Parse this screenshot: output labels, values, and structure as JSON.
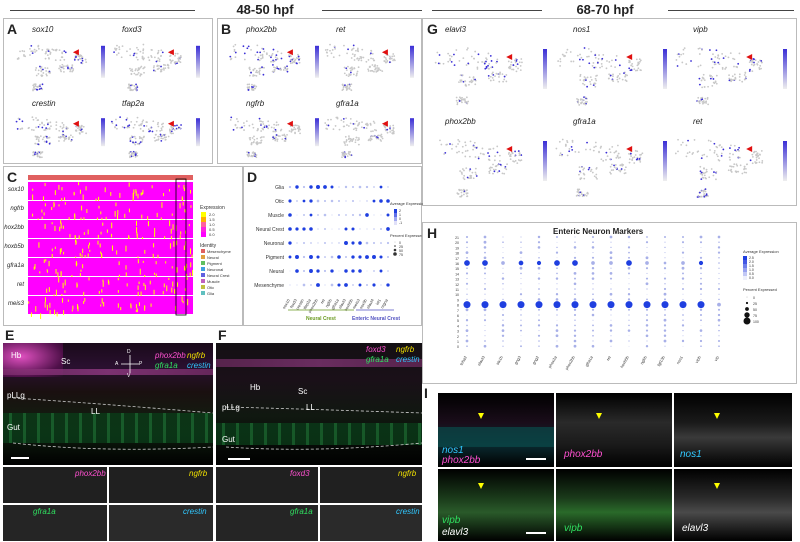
{
  "headers": {
    "left": "48-50 hpf",
    "right": "68-70 hpf"
  },
  "panelA": {
    "label": "A",
    "genes": [
      "sox10",
      "foxd3",
      "crestin",
      "tfap2a"
    ]
  },
  "panelB": {
    "label": "B",
    "genes": [
      "phox2bb",
      "ret",
      "ngfrb",
      "gfra1a"
    ]
  },
  "panelG": {
    "label": "G",
    "genes": [
      "elavl3",
      "nos1",
      "vipb",
      "phox2bb",
      "gfra1a",
      "ret"
    ]
  },
  "panelC": {
    "label": "C",
    "rows": [
      "sox10",
      "ngfrb",
      "phox2bb",
      "hoxb5b",
      "gfra1a",
      "ret",
      "meis3"
    ],
    "legend_title": "Expression",
    "legend_scale": [
      "2.0",
      "1.5",
      "1.0",
      "0.5",
      "0.0"
    ],
    "identity_title": "Identity",
    "identity_items": [
      "Mesenchyme",
      "Neural",
      "Pigment",
      "Neuronal",
      "Neural Crest",
      "Muscle",
      "Otic",
      "Glia"
    ]
  },
  "panelD": {
    "label": "D",
    "rows": [
      "Glia",
      "Otic",
      "Muscle",
      "Neural Crest",
      "Neuronal",
      "Pigment",
      "Neural",
      "Mesenchyme"
    ],
    "cols": [
      "sox10",
      "foxd3",
      "crestin",
      "tfap2a",
      "phox2bb",
      "ret",
      "ngfrb",
      "gfra1a",
      "elavl3",
      "hoxb5b",
      "meis3",
      "sox9b",
      "elavl4",
      "isl1",
      "nrgna"
    ],
    "group1": "Neural Crest",
    "group2": "Enteric Neural Crest",
    "legend_avg": "Average Expression",
    "legend_avg_ticks": [
      "2",
      "1",
      "0",
      "-1"
    ],
    "legend_pct": "Percent Expressed",
    "legend_pct_ticks": [
      "0",
      "25",
      "50",
      "75"
    ]
  },
  "panelH": {
    "label": "H",
    "title": "Enteric Neuron Markers",
    "rows": [
      "21",
      "20",
      "19",
      "18",
      "17",
      "16",
      "15",
      "14",
      "13",
      "12",
      "11",
      "10",
      "9",
      "8",
      "7",
      "6",
      "5",
      "4",
      "3",
      "2",
      "1",
      "0"
    ],
    "cols": [
      "tuba2",
      "elavl3",
      "stx1b",
      "gng3",
      "gng2",
      "phox2a",
      "phox2bb",
      "gfra1a",
      "ret",
      "hoxb5b",
      "ngfrb",
      "fgf13b",
      "nos1",
      "vipb",
      "vip"
    ],
    "legend_avg": "Average Expression",
    "legend_avg_ticks": [
      "2.5",
      "2.0",
      "1.5",
      "1.0",
      "0.5",
      "0.0"
    ],
    "legend_pct": "Percent Expressed",
    "legend_pct_ticks": [
      "0",
      "25",
      "50",
      "75",
      "100"
    ]
  },
  "panelE": {
    "label": "E",
    "labels": [
      "Hb",
      "Sc",
      "pLLg",
      "LL",
      "Gut"
    ],
    "legend": [
      "phox2bb",
      "ngfrb",
      "gfra1a",
      "crestin"
    ],
    "compass": [
      "D",
      "A",
      "P",
      "V"
    ],
    "sub": [
      "phox2bb",
      "ngfrb",
      "gfra1a",
      "crestin"
    ]
  },
  "panelF": {
    "label": "F",
    "labels": [
      "Hb",
      "Sc",
      "pLLg",
      "LL",
      "Gut"
    ],
    "legend": [
      "foxd3",
      "ngfrb",
      "gfra1a",
      "crestin"
    ],
    "sub": [
      "foxd3",
      "ngfrb",
      "gfra1a",
      "crestin"
    ]
  },
  "panelI": {
    "label": "I",
    "top": [
      "nos1",
      "phox2bb",
      "phox2bb",
      "nos1"
    ],
    "bottom": [
      "vipb",
      "elavl3",
      "vipb",
      "elavl3"
    ]
  },
  "colors": {
    "heat_low": "#ff00ff",
    "heat_high": "#ffff00",
    "dot": "#1f3fe0",
    "umap_hi": "#3b2fd6",
    "umap_lo": "#c8c8c8",
    "arrow": "#e01010"
  }
}
